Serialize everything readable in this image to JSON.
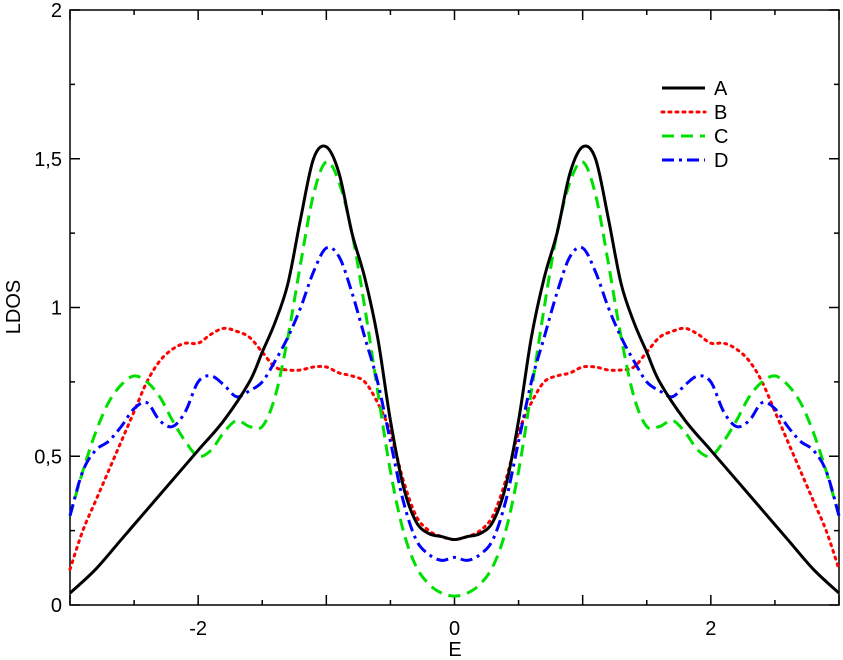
{
  "chart_data": {
    "type": "line",
    "xlabel": "E",
    "ylabel": "LDOS",
    "xlim": [
      -3,
      3
    ],
    "ylim": [
      0,
      2
    ],
    "x_ticks": [
      -2,
      0,
      2
    ],
    "x_tick_labels": [
      "-2",
      "0",
      "2"
    ],
    "y_ticks": [
      0,
      0.5,
      1,
      1.5,
      2
    ],
    "y_tick_labels": [
      "0",
      "0,5",
      "1",
      "1,5",
      "2"
    ],
    "grid": false,
    "legend_position": "top-right",
    "series": [
      {
        "name": "A",
        "color": "#000000",
        "style": "solid",
        "x": [
          0,
          0.1,
          0.2,
          0.3,
          0.4,
          0.5,
          0.6,
          0.7,
          0.8,
          0.9,
          1.0,
          1.1,
          1.2,
          1.3,
          1.4,
          1.5,
          1.6,
          1.8,
          2.0,
          2.2,
          2.4,
          2.6,
          2.8,
          3.0
        ],
        "y": [
          0.22,
          0.23,
          0.24,
          0.28,
          0.4,
          0.62,
          0.9,
          1.1,
          1.25,
          1.45,
          1.54,
          1.5,
          1.3,
          1.08,
          0.95,
          0.85,
          0.75,
          0.62,
          0.52,
          0.42,
          0.32,
          0.22,
          0.12,
          0.04
        ]
      },
      {
        "name": "B",
        "color": "#ff0000",
        "style": "dotted",
        "x": [
          0,
          0.1,
          0.2,
          0.3,
          0.4,
          0.5,
          0.6,
          0.7,
          0.8,
          0.9,
          1.0,
          1.1,
          1.2,
          1.3,
          1.4,
          1.5,
          1.6,
          1.7,
          1.8,
          1.9,
          2.0,
          2.1,
          2.2,
          2.3,
          2.4,
          2.5,
          2.6,
          2.7,
          2.8,
          2.9,
          3.0
        ],
        "y": [
          0.22,
          0.23,
          0.25,
          0.3,
          0.42,
          0.58,
          0.68,
          0.75,
          0.77,
          0.78,
          0.8,
          0.8,
          0.79,
          0.79,
          0.8,
          0.85,
          0.9,
          0.92,
          0.93,
          0.91,
          0.88,
          0.88,
          0.86,
          0.82,
          0.75,
          0.65,
          0.55,
          0.45,
          0.35,
          0.25,
          0.12
        ]
      },
      {
        "name": "C",
        "color": "#00e000",
        "style": "dashed",
        "x": [
          0,
          0.1,
          0.2,
          0.3,
          0.4,
          0.5,
          0.6,
          0.7,
          0.8,
          0.9,
          1.0,
          1.1,
          1.2,
          1.3,
          1.4,
          1.5,
          1.6,
          1.7,
          1.8,
          1.9,
          2.0,
          2.1,
          2.2,
          2.3,
          2.4,
          2.5,
          2.6,
          2.7,
          2.8,
          2.9,
          3.0
        ],
        "y": [
          0.03,
          0.04,
          0.07,
          0.13,
          0.25,
          0.45,
          0.72,
          1.0,
          1.25,
          1.42,
          1.49,
          1.38,
          1.15,
          0.9,
          0.7,
          0.6,
          0.6,
          0.62,
          0.58,
          0.52,
          0.5,
          0.55,
          0.62,
          0.7,
          0.75,
          0.77,
          0.74,
          0.68,
          0.58,
          0.45,
          0.3
        ]
      },
      {
        "name": "D",
        "color": "#0000ff",
        "style": "dash-dot",
        "x": [
          0,
          0.1,
          0.2,
          0.3,
          0.4,
          0.5,
          0.6,
          0.7,
          0.8,
          0.9,
          1.0,
          1.1,
          1.2,
          1.3,
          1.4,
          1.5,
          1.6,
          1.7,
          1.8,
          1.9,
          2.0,
          2.1,
          2.2,
          2.3,
          2.4,
          2.5,
          2.6,
          2.7,
          2.8,
          2.9,
          3.0
        ],
        "y": [
          0.16,
          0.15,
          0.17,
          0.22,
          0.35,
          0.55,
          0.75,
          0.9,
          1.05,
          1.17,
          1.2,
          1.12,
          1.0,
          0.9,
          0.82,
          0.75,
          0.72,
          0.7,
          0.74,
          0.77,
          0.75,
          0.65,
          0.6,
          0.62,
          0.68,
          0.66,
          0.6,
          0.55,
          0.52,
          0.45,
          0.3
        ]
      }
    ]
  }
}
